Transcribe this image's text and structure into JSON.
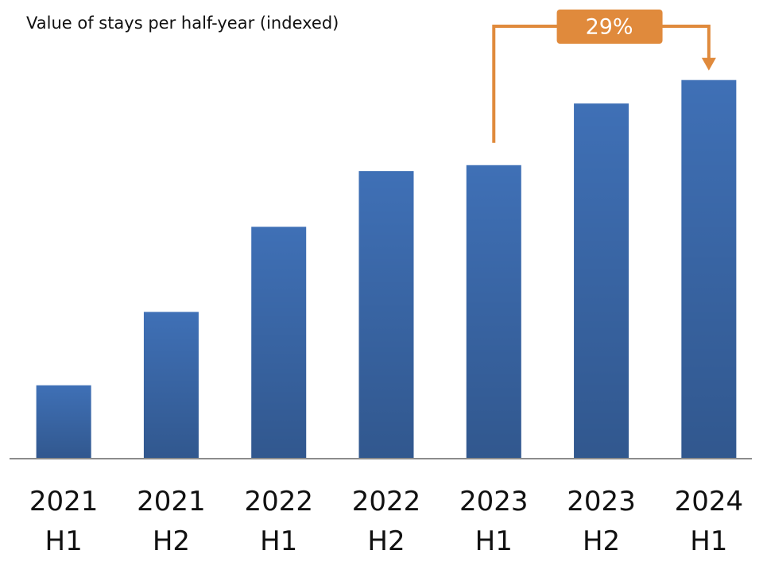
{
  "chart_data": {
    "type": "bar",
    "title": "Value of stays per half-year (indexed)",
    "categories": [
      "2021 H1",
      "2021 H2",
      "2022 H1",
      "2022 H2",
      "2023 H1",
      "2023 H2",
      "2024 H1"
    ],
    "values": [
      25,
      50,
      79,
      98,
      100,
      121,
      129
    ],
    "color": "#3f70b6",
    "ylim": [
      0,
      130
    ],
    "annotation": "29%",
    "annotation_color": "#e08a3c"
  }
}
